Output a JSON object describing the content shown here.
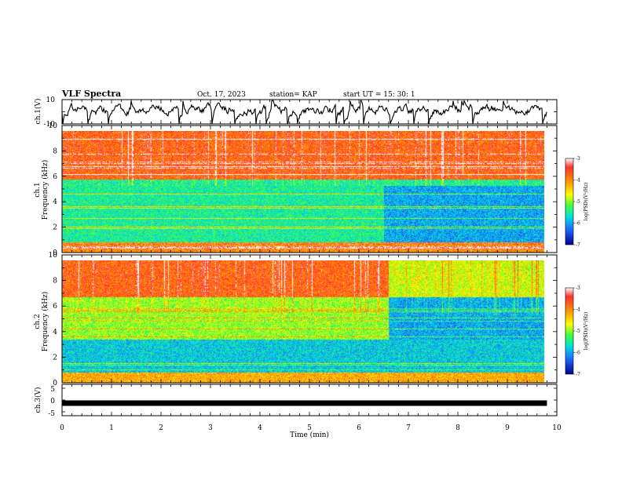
{
  "header": {
    "title": "VLF Spectra",
    "date": "Oct. 17, 2023",
    "station": "station= KAP",
    "start": "start  UT =   15: 30: 1"
  },
  "chart_data": [
    {
      "type": "line",
      "name": "ch1-waveform",
      "ylabel": "ch.1(V)",
      "ylim": [
        -10,
        10
      ],
      "ytick_labels": [
        "10",
        "-10"
      ],
      "xlim": [
        0,
        10
      ],
      "x_end": 9.8,
      "approx_mean_v": 2.0,
      "approx_range_v": [
        -10,
        10
      ]
    },
    {
      "type": "heatmap",
      "name": "ch1-spectrogram",
      "ylabel": "ch.1\nFrequency (kHz)",
      "ylim": [
        0,
        10
      ],
      "ytick_labels": [
        "0",
        "2",
        "4",
        "6",
        "8",
        "10"
      ],
      "xlim": [
        0,
        10
      ],
      "x_end": 9.8,
      "colorbar": {
        "label": "log(PSD)(V²/Hz)",
        "min": -7,
        "max": -3,
        "tick_labels": [
          "-3",
          "-4",
          "-5",
          "-6",
          "-7"
        ]
      },
      "regime_change_min": 6.5,
      "features": [
        {
          "freq_khz": [
            6,
            10
          ],
          "log_psd": -3.8,
          "note": "intense impulsive broadband"
        },
        {
          "freq_khz": [
            5.5,
            6
          ],
          "log_psd": -5.5
        },
        {
          "freq_khz": [
            0,
            5.5
          ],
          "log_psd_before": -5.5,
          "log_psd_after": -6.0
        },
        {
          "freq_khz": [
            0,
            0.8
          ],
          "log_psd": -4.0
        }
      ]
    },
    {
      "type": "heatmap",
      "name": "ch2-spectrogram",
      "ylabel": "ch.2\nFrequency (kHz)",
      "ylim": [
        0,
        10
      ],
      "ytick_labels": [
        "0",
        "2",
        "4",
        "6",
        "8",
        "10"
      ],
      "xlim": [
        0,
        10
      ],
      "x_end": 9.8,
      "colorbar": {
        "label": "log(PSD)(V²/Hz)",
        "min": -7,
        "max": -3,
        "tick_labels": [
          "-3",
          "-4",
          "-5",
          "-6",
          "-7"
        ]
      },
      "regime_change_min": 6.6,
      "features": [
        {
          "freq_khz": [
            7,
            10
          ],
          "log_psd_before": -3.8,
          "log_psd_after": -4.8
        },
        {
          "freq_khz": [
            3.5,
            7
          ],
          "log_psd_before": -5.0,
          "log_psd_after": -6.0
        },
        {
          "freq_khz": [
            0,
            3.5
          ],
          "log_psd": -5.8
        },
        {
          "freq_khz": [
            0,
            0.8
          ],
          "log_psd": -4.2
        }
      ]
    },
    {
      "type": "line",
      "name": "ch3-waveform",
      "ylabel": "ch.3(V)",
      "ylim": [
        -5,
        5
      ],
      "ytick_labels": [
        "5",
        "0",
        "-5"
      ],
      "xlim": [
        0,
        10
      ],
      "x_end": 9.8,
      "value_v": -1.0,
      "xlabel": "Time (min)",
      "xtick_labels": [
        "0",
        "1",
        "2",
        "3",
        "4",
        "5",
        "6",
        "7",
        "8",
        "9",
        "10"
      ]
    }
  ]
}
